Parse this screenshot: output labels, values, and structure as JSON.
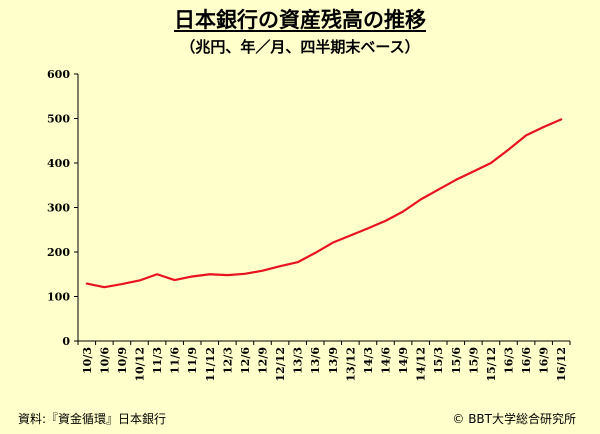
{
  "header": {
    "title": "日本銀行の資産残高の推移",
    "subtitle": "（兆円、年／月、四半期末ベース）"
  },
  "footer": {
    "source": "資料:『資金循環』日本銀行",
    "copyright": "© BBT大学総合研究所"
  },
  "chart_data": {
    "type": "line",
    "title": "日本銀行の資産残高の推移",
    "subtitle": "（兆円、年／月、四半期末ベース）",
    "xlabel": "",
    "ylabel": "",
    "ylim": [
      0,
      600
    ],
    "yticks": [
      0,
      100,
      200,
      300,
      400,
      500,
      600
    ],
    "grid": false,
    "categories": [
      "10/3",
      "10/6",
      "10/9",
      "10/12",
      "11/3",
      "11/6",
      "11/9",
      "11/12",
      "12/3",
      "12/6",
      "12/9",
      "12/12",
      "13/3",
      "13/6",
      "13/9",
      "13/12",
      "14/3",
      "14/6",
      "14/9",
      "14/12",
      "15/3",
      "15/6",
      "15/9",
      "15/12",
      "16/3",
      "16/6",
      "16/9",
      "16/12"
    ],
    "series": [
      {
        "color": "#e8131f",
        "values": [
          129,
          121,
          128,
          136,
          150,
          137,
          145,
          150,
          148,
          151,
          158,
          168,
          177,
          198,
          221,
          237,
          253,
          270,
          291,
          318,
          340,
          362,
          381,
          400,
          430,
          462,
          481,
          498
        ]
      }
    ]
  }
}
